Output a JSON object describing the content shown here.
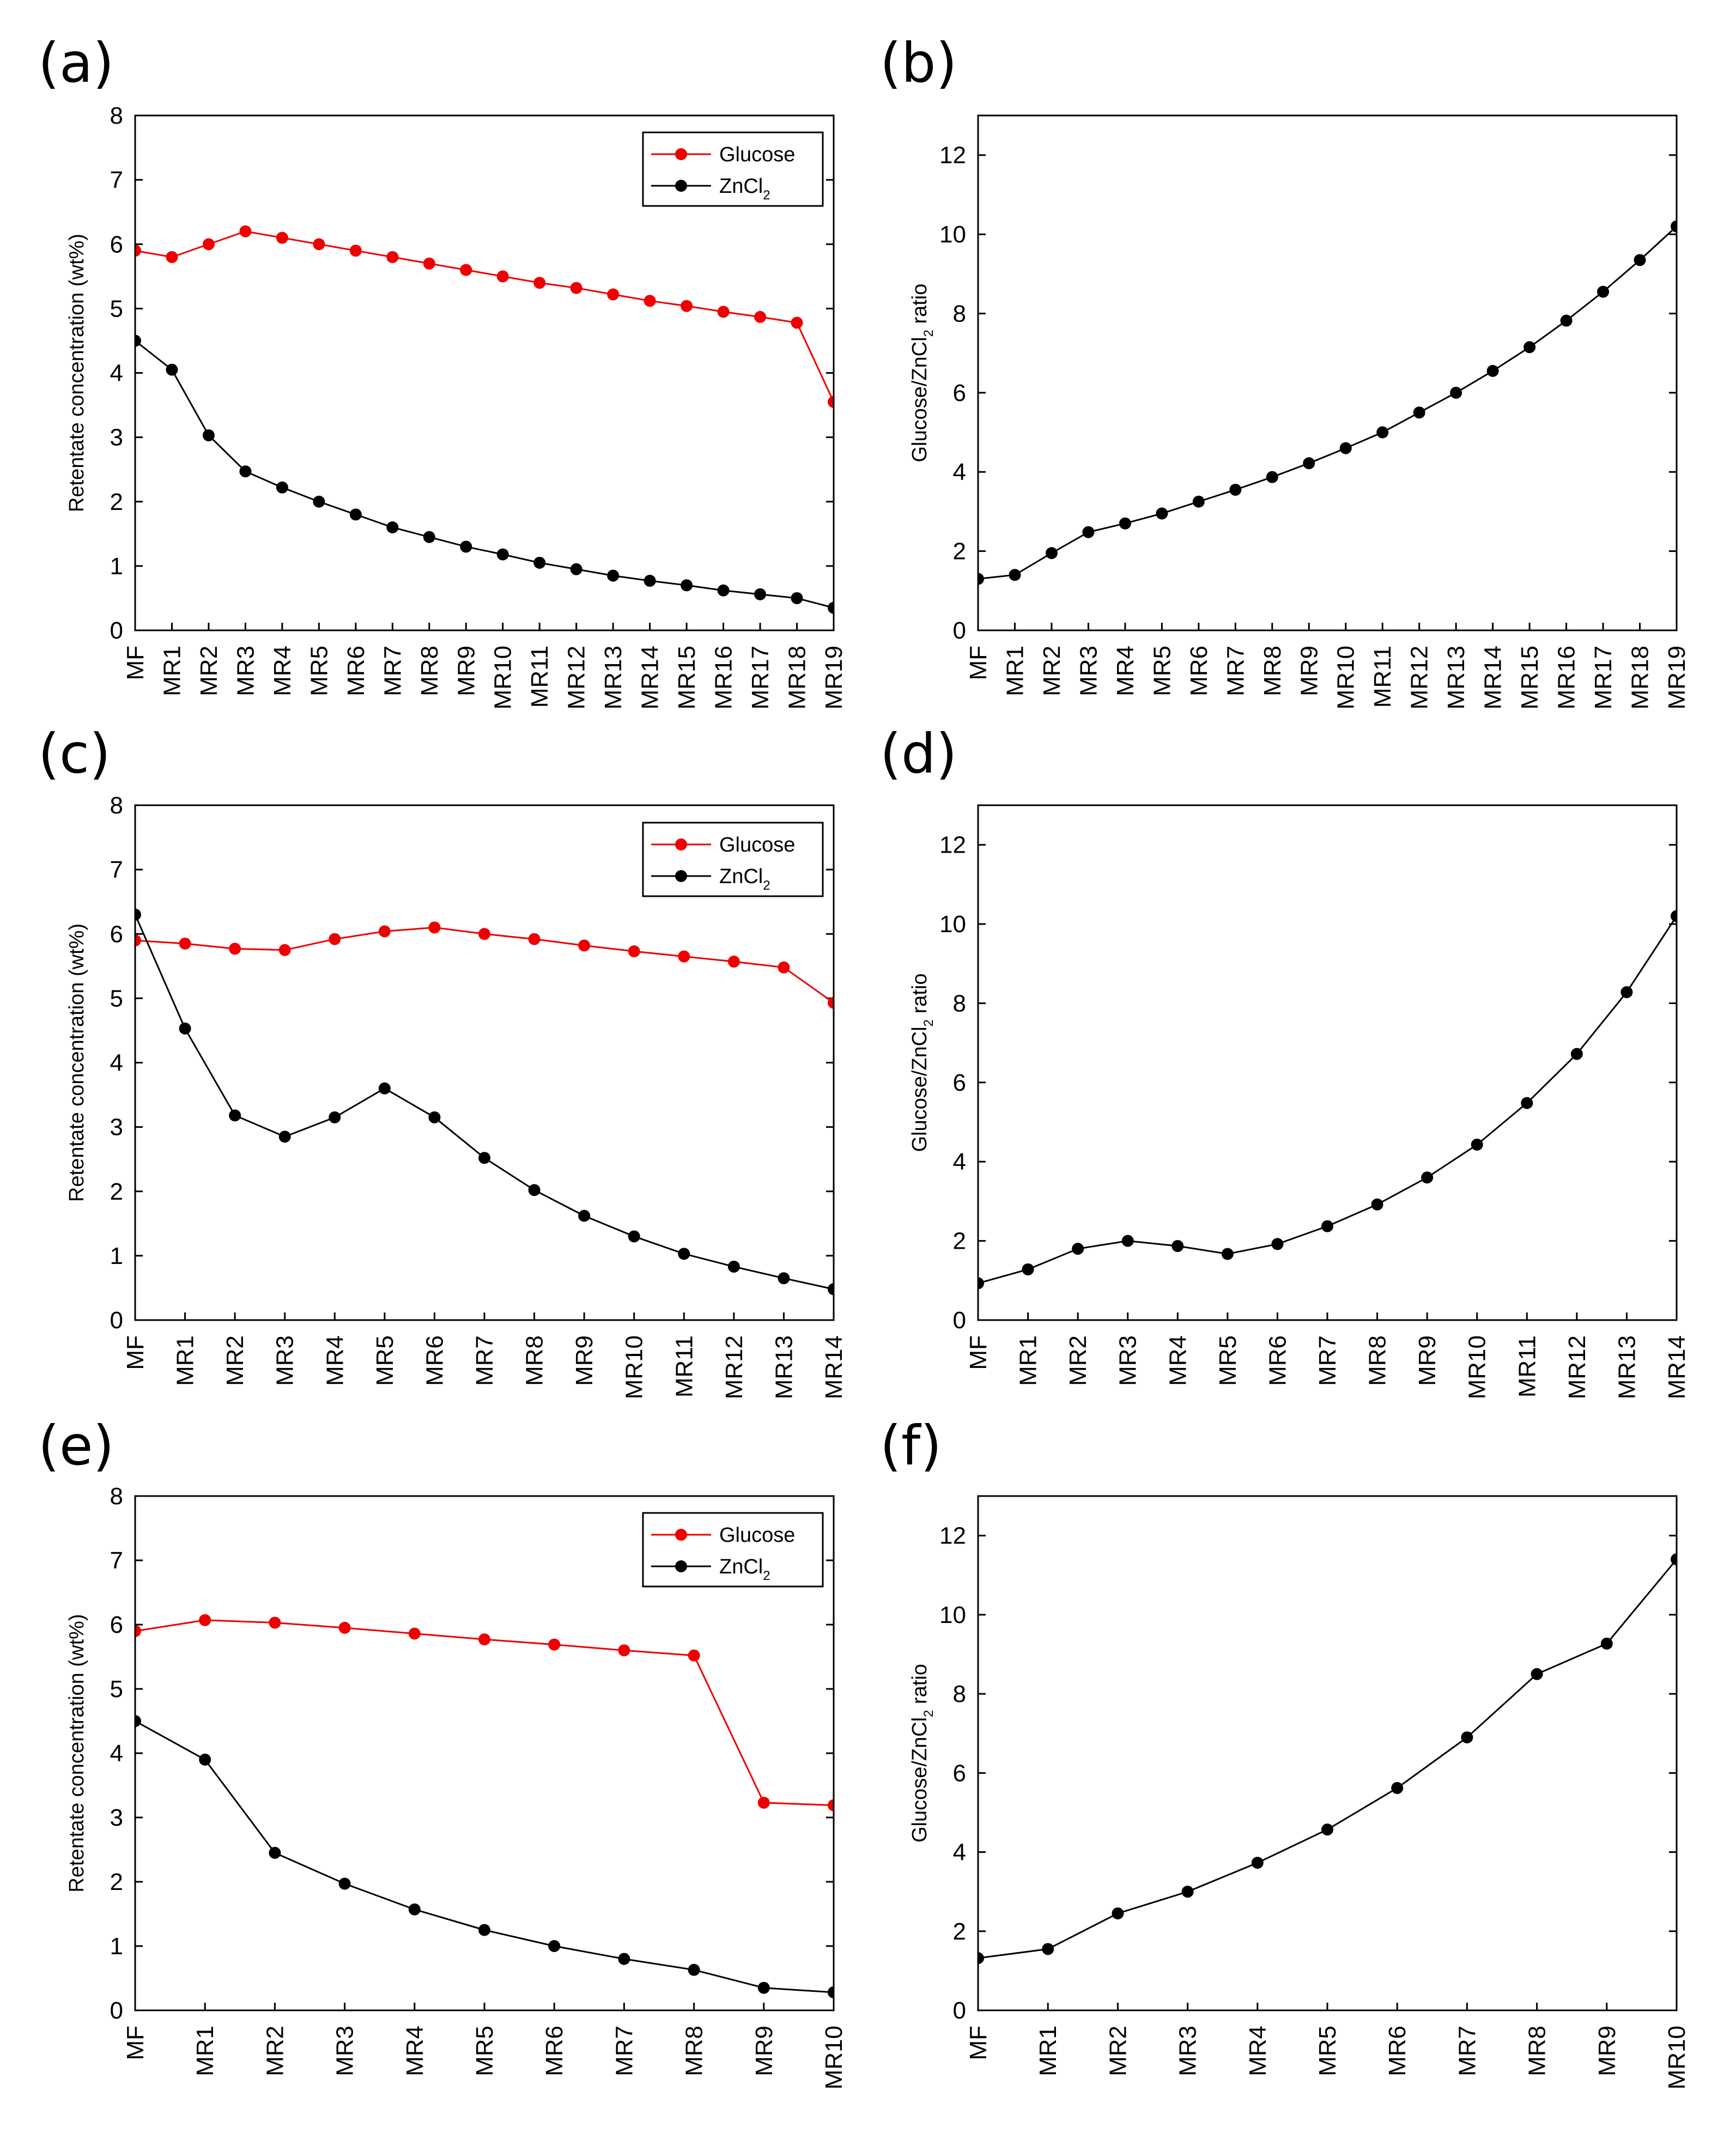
{
  "chart_data": [
    {
      "panel": "(a)",
      "type": "line",
      "categories": [
        "MF",
        "MR1",
        "MR2",
        "MR3",
        "MR4",
        "MR5",
        "MR6",
        "MR7",
        "MR8",
        "MR9",
        "MR10",
        "MR11",
        "MR12",
        "MR13",
        "MR14",
        "MR15",
        "MR16",
        "MR17",
        "MR18",
        "MR19"
      ],
      "ylabel": "Retentate concentration (wt%)",
      "ylim": [
        0,
        8
      ],
      "yticks": [
        "0",
        "1",
        "2",
        "3",
        "4",
        "5",
        "6",
        "7",
        "8"
      ],
      "legend": {
        "glucose": "Glucose",
        "zncl_base": "ZnCl",
        "zncl_sub": "2"
      },
      "series": [
        {
          "name": "Glucose",
          "color": "#ee0000",
          "values": [
            5.9,
            5.8,
            6.0,
            6.2,
            6.1,
            6.0,
            5.9,
            5.8,
            5.7,
            5.6,
            5.5,
            5.4,
            5.32,
            5.22,
            5.12,
            5.04,
            4.95,
            4.87,
            4.78,
            3.55
          ]
        },
        {
          "name": "ZnCl2",
          "color": "#000000",
          "values": [
            4.5,
            4.05,
            3.03,
            2.47,
            2.22,
            2.0,
            1.8,
            1.6,
            1.45,
            1.3,
            1.18,
            1.05,
            0.95,
            0.85,
            0.77,
            0.7,
            0.62,
            0.56,
            0.5,
            0.35
          ]
        }
      ]
    },
    {
      "panel": "(b)",
      "type": "line",
      "categories": [
        "MF",
        "MR1",
        "MR2",
        "MR3",
        "MR4",
        "MR5",
        "MR6",
        "MR7",
        "MR8",
        "MR9",
        "MR10",
        "MR11",
        "MR12",
        "MR13",
        "MR14",
        "MR15",
        "MR16",
        "MR17",
        "MR18",
        "MR19"
      ],
      "ylabel_base": "Glucose/ZnCl",
      "ylabel_sub": "2",
      "ylabel_tail": " ratio",
      "ylim": [
        0,
        13
      ],
      "yticks": [
        "0",
        "2",
        "4",
        "6",
        "8",
        "10",
        "12"
      ],
      "series": [
        {
          "name": "Glucose/ZnCl2 ratio",
          "color": "#000000",
          "values": [
            1.3,
            1.4,
            1.95,
            2.48,
            2.7,
            2.95,
            3.25,
            3.55,
            3.87,
            4.22,
            4.6,
            5.0,
            5.5,
            6.0,
            6.55,
            7.15,
            7.82,
            8.55,
            9.35,
            10.2
          ]
        }
      ]
    },
    {
      "panel": "(c)",
      "type": "line",
      "categories": [
        "MF",
        "MR1",
        "MR2",
        "MR3",
        "MR4",
        "MR5",
        "MR6",
        "MR7",
        "MR8",
        "MR9",
        "MR10",
        "MR11",
        "MR12",
        "MR13",
        "MR14"
      ],
      "ylabel": "Retentate concentration (wt%)",
      "ylim": [
        0,
        8
      ],
      "yticks": [
        "0",
        "1",
        "2",
        "3",
        "4",
        "5",
        "6",
        "7",
        "8"
      ],
      "legend": {
        "glucose": "Glucose",
        "zncl_base": "ZnCl",
        "zncl_sub": "2"
      },
      "series": [
        {
          "name": "Glucose",
          "color": "#ee0000",
          "values": [
            5.9,
            5.85,
            5.77,
            5.75,
            5.92,
            6.04,
            6.1,
            6.0,
            5.92,
            5.82,
            5.73,
            5.65,
            5.57,
            5.48,
            4.93
          ]
        },
        {
          "name": "ZnCl2",
          "color": "#000000",
          "values": [
            6.3,
            4.53,
            3.18,
            2.85,
            3.15,
            3.6,
            3.15,
            2.52,
            2.02,
            1.62,
            1.3,
            1.03,
            0.83,
            0.65,
            0.48
          ]
        }
      ]
    },
    {
      "panel": "(d)",
      "type": "line",
      "categories": [
        "MF",
        "MR1",
        "MR2",
        "MR3",
        "MR4",
        "MR5",
        "MR6",
        "MR7",
        "MR8",
        "MR9",
        "MR10",
        "MR11",
        "MR12",
        "MR13",
        "MR14"
      ],
      "ylabel_base": "Glucose/ZnCl",
      "ylabel_sub": "2",
      "ylabel_tail": " ratio",
      "ylim": [
        0,
        13
      ],
      "yticks": [
        "0",
        "2",
        "4",
        "6",
        "8",
        "10",
        "12"
      ],
      "series": [
        {
          "name": "Glucose/ZnCl2 ratio",
          "color": "#000000",
          "values": [
            0.93,
            1.28,
            1.8,
            2.0,
            1.87,
            1.67,
            1.92,
            2.37,
            2.92,
            3.6,
            4.43,
            5.48,
            6.72,
            8.28,
            10.2
          ]
        }
      ]
    },
    {
      "panel": "(e)",
      "type": "line",
      "categories": [
        "MF",
        "MR1",
        "MR2",
        "MR3",
        "MR4",
        "MR5",
        "MR6",
        "MR7",
        "MR8",
        "MR9",
        "MR10"
      ],
      "ylabel": "Retentate concentration (wt%)",
      "ylim": [
        0,
        8
      ],
      "yticks": [
        "0",
        "1",
        "2",
        "3",
        "4",
        "5",
        "6",
        "7",
        "8"
      ],
      "legend": {
        "glucose": "Glucose",
        "zncl_base": "ZnCl",
        "zncl_sub": "2"
      },
      "series": [
        {
          "name": "Glucose",
          "color": "#ee0000",
          "values": [
            5.9,
            6.07,
            6.03,
            5.95,
            5.86,
            5.77,
            5.69,
            5.6,
            5.52,
            3.23,
            3.19
          ]
        },
        {
          "name": "ZnCl2",
          "color": "#000000",
          "values": [
            4.5,
            3.9,
            2.45,
            1.97,
            1.57,
            1.25,
            1.0,
            0.8,
            0.63,
            0.35,
            0.28
          ]
        }
      ]
    },
    {
      "panel": "(f)",
      "type": "line",
      "categories": [
        "MF",
        "MR1",
        "MR2",
        "MR3",
        "MR4",
        "MR5",
        "MR6",
        "MR7",
        "MR8",
        "MR9",
        "MR10"
      ],
      "ylabel_base": "Glucose/ZnCl",
      "ylabel_sub": "2",
      "ylabel_tail": " ratio",
      "ylim": [
        0,
        13
      ],
      "yticks": [
        "0",
        "2",
        "4",
        "6",
        "8",
        "10",
        "12"
      ],
      "series": [
        {
          "name": "Glucose/ZnCl2 ratio",
          "color": "#000000",
          "values": [
            1.32,
            1.55,
            2.45,
            3.0,
            3.73,
            4.57,
            5.62,
            6.9,
            8.5,
            9.27,
            11.4
          ]
        }
      ]
    }
  ]
}
